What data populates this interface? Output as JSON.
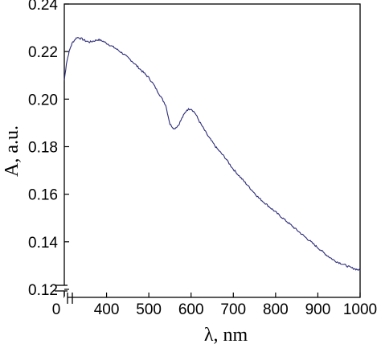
{
  "chart_data": {
    "type": "line",
    "title": "",
    "xlabel": "λ, nm",
    "ylabel": "A, a.u.",
    "xlim": [
      300,
      1000
    ],
    "ylim": [
      0.12,
      0.24
    ],
    "axis_break_x": true,
    "axis_break_y": true,
    "origin_label": "0",
    "x_ticks": [
      400,
      500,
      600,
      700,
      800,
      900,
      1000
    ],
    "x_tick_labels": [
      "400",
      "500",
      "600",
      "700",
      "800",
      "900",
      "1000"
    ],
    "y_ticks": [
      0.12,
      0.14,
      0.16,
      0.18,
      0.2,
      0.22,
      0.24
    ],
    "y_tick_labels": [
      "0.12",
      "0.14",
      "0.16",
      "0.18",
      "0.20",
      "0.22",
      "0.24"
    ],
    "grid": false,
    "line_color": "#2b2b7a",
    "series": [
      {
        "x": [
          300,
          305,
          310,
          315,
          320,
          330,
          340,
          350,
          360,
          370,
          380,
          390,
          400,
          420,
          440,
          460,
          480,
          500,
          510,
          520,
          530,
          540,
          550,
          560,
          570,
          580,
          590,
          600,
          610,
          620,
          640,
          660,
          680,
          700,
          720,
          740,
          760,
          780,
          800,
          820,
          840,
          860,
          880,
          900,
          920,
          940,
          960,
          980,
          1000
        ],
        "values": [
          0.208,
          0.215,
          0.219,
          0.222,
          0.224,
          0.226,
          0.2255,
          0.2245,
          0.224,
          0.2245,
          0.225,
          0.2245,
          0.2235,
          0.2215,
          0.219,
          0.216,
          0.2125,
          0.209,
          0.2065,
          0.2035,
          0.2005,
          0.1975,
          0.1895,
          0.1875,
          0.189,
          0.1925,
          0.1955,
          0.196,
          0.194,
          0.1905,
          0.1845,
          0.1795,
          0.1755,
          0.1705,
          0.1665,
          0.1625,
          0.1585,
          0.1555,
          0.1525,
          0.1495,
          0.1465,
          0.1435,
          0.1405,
          0.1375,
          0.1345,
          0.132,
          0.1305,
          0.129,
          0.128
        ]
      }
    ]
  }
}
